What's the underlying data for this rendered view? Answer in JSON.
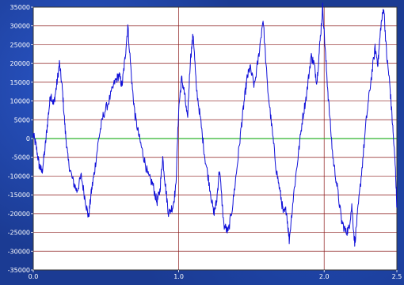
{
  "chart_data": {
    "type": "line",
    "title": "",
    "xlabel": "",
    "ylabel": "",
    "xlim": [
      0.0,
      2.5
    ],
    "ylim": [
      -35000,
      35000
    ],
    "x_ticks": [
      "0.0",
      "1.0",
      "2.0",
      "2.5"
    ],
    "x_tick_values": [
      0.0,
      1.0,
      2.0,
      2.5
    ],
    "y_ticks": [
      "35000",
      "30000",
      "25000",
      "20000",
      "15000",
      "10000",
      "5000",
      "0",
      "-5000",
      "-10000",
      "-15000",
      "-20000",
      "-25000",
      "-30000",
      "-35000"
    ],
    "y_tick_values": [
      35000,
      30000,
      25000,
      20000,
      15000,
      10000,
      5000,
      0,
      -5000,
      -10000,
      -15000,
      -20000,
      -25000,
      -30000,
      -35000
    ],
    "grid": true,
    "zero_line_color": "#2db52d",
    "grid_color": "#8b1a1a",
    "series_color": "#1010d8",
    "plot_background": "#ffffff",
    "series": [
      {
        "x": [
          0.0,
          0.02,
          0.04,
          0.06,
          0.08,
          0.1,
          0.12,
          0.14,
          0.16,
          0.18,
          0.2,
          0.22,
          0.24,
          0.27,
          0.3,
          0.33,
          0.36,
          0.38,
          0.4,
          0.42,
          0.45,
          0.48,
          0.52,
          0.56,
          0.59,
          0.61,
          0.63,
          0.65,
          0.68,
          0.7,
          0.73,
          0.76,
          0.79,
          0.82,
          0.85,
          0.87,
          0.89,
          0.91,
          0.93,
          0.96,
          0.98,
          1.0,
          1.02,
          1.04,
          1.06,
          1.08,
          1.1,
          1.12,
          1.15,
          1.18,
          1.21,
          1.24,
          1.26,
          1.28,
          1.31,
          1.34,
          1.37,
          1.4,
          1.43,
          1.45,
          1.47,
          1.49,
          1.52,
          1.55,
          1.58,
          1.61,
          1.64,
          1.67,
          1.7,
          1.72,
          1.74,
          1.76,
          1.79,
          1.82,
          1.85,
          1.88,
          1.91,
          1.93,
          1.95,
          1.97,
          1.99,
          2.01,
          2.03,
          2.06,
          2.09,
          2.12,
          2.15,
          2.17,
          2.19,
          2.21,
          2.23,
          2.26,
          2.29,
          2.32,
          2.35,
          2.37,
          2.39,
          2.41,
          2.43,
          2.45,
          2.47,
          2.49,
          2.5
        ],
        "y": [
          1000,
          -2000,
          -7000,
          -9000,
          -3000,
          5000,
          12000,
          9000,
          14000,
          20000,
          13000,
          2000,
          -6000,
          -11000,
          -14000,
          -10000,
          -17000,
          -21000,
          -14000,
          -9000,
          0,
          6000,
          10000,
          15000,
          17000,
          14000,
          21000,
          30000,
          14000,
          6000,
          0,
          -5000,
          -10000,
          -12000,
          -17000,
          -14000,
          -5000,
          -13000,
          -20000,
          -18000,
          -13000,
          8000,
          16000,
          12000,
          5000,
          21000,
          28000,
          14000,
          5000,
          -5000,
          -12000,
          -20000,
          -17000,
          -8000,
          -23000,
          -25000,
          -18000,
          -8000,
          3000,
          10000,
          16000,
          19000,
          14000,
          22000,
          32000,
          14000,
          3000,
          -8000,
          -15000,
          -20000,
          -19000,
          -27000,
          -15000,
          -5000,
          5000,
          12000,
          22000,
          20000,
          15000,
          25000,
          35000,
          22000,
          10000,
          -5000,
          -13000,
          -22000,
          -25000,
          -24000,
          -18000,
          -28000,
          -20000,
          -8000,
          5000,
          15000,
          24000,
          20000,
          30000,
          35000,
          22000,
          15000,
          4000,
          -8000,
          -18000
        ]
      }
    ]
  }
}
